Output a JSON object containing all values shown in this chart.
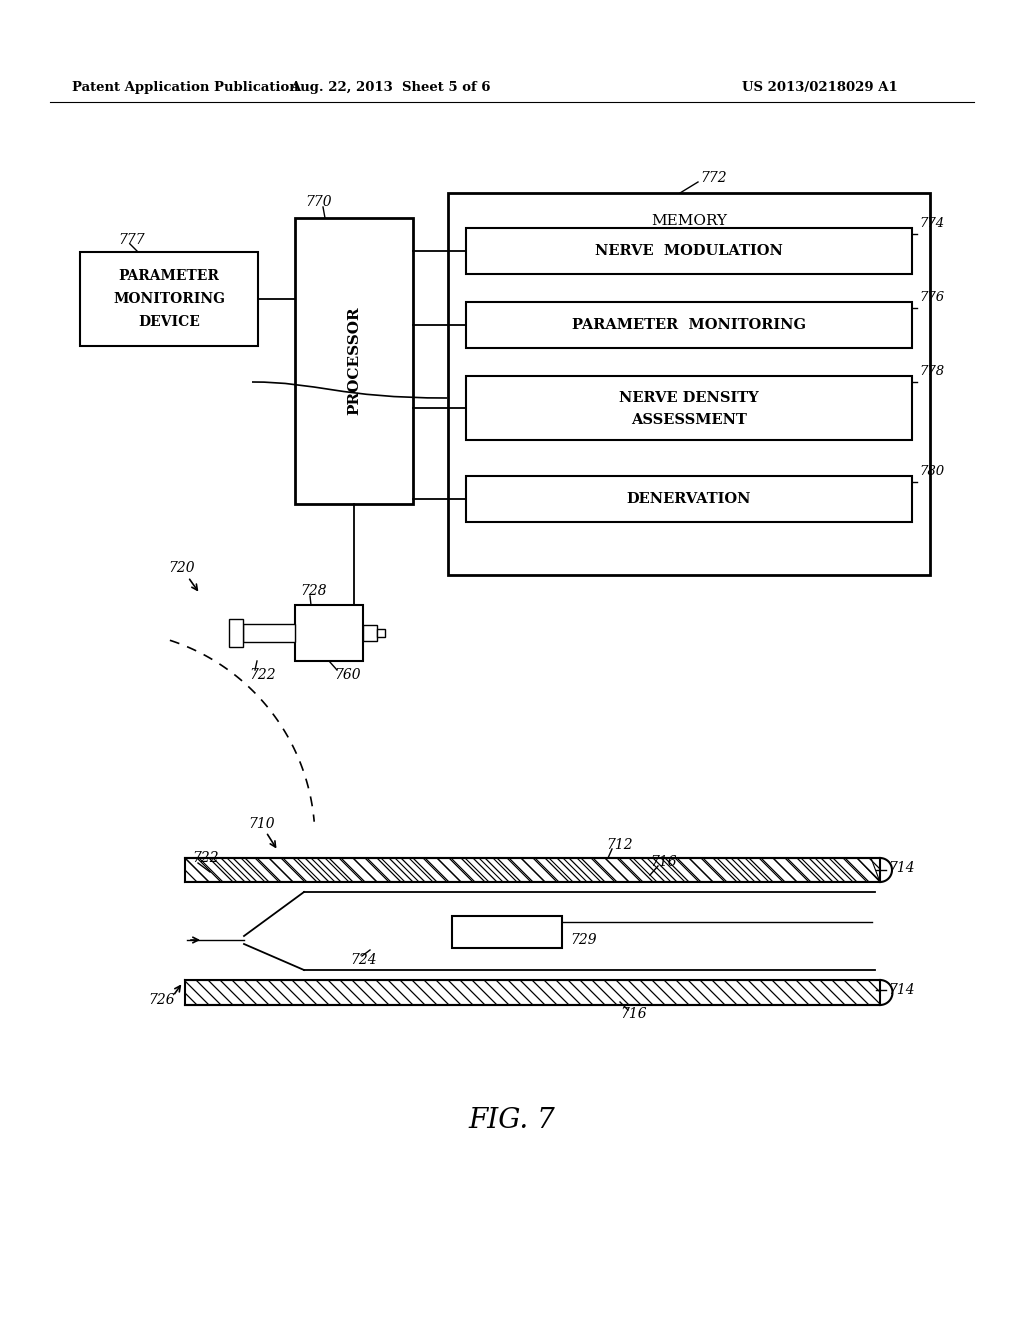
{
  "header_left": "Patent Application Publication",
  "header_mid": "Aug. 22, 2013  Sheet 5 of 6",
  "header_right": "US 2013/0218029 A1",
  "fig_label": "FIG. 7",
  "bg_color": "#ffffff",
  "lc": "#000000",
  "fc": "#000000"
}
